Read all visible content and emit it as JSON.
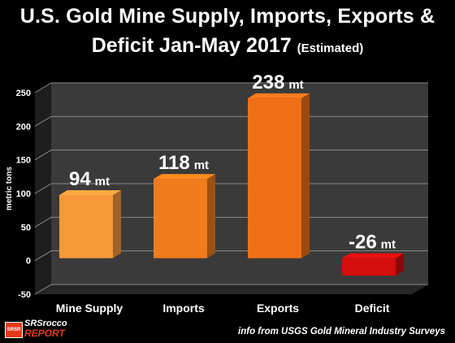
{
  "title": {
    "line1": "U.S. Gold Mine Supply, Imports, Exports &",
    "line2": "Deficit Jan-May 2017",
    "subtitle": "(Estimated)"
  },
  "footer": {
    "source": "info from USGS Gold Mineral Industry Surveys",
    "logo_top": "SRSrocco",
    "logo_bottom": "REPORT",
    "logo_mark": "SRSR"
  },
  "colors": {
    "background": "#000000",
    "wall": "#3a3a3a",
    "floor": "#262626",
    "grid": "#8a8a8a",
    "text": "#ffffff"
  },
  "chart_data": {
    "type": "bar",
    "categories": [
      "Mine Supply",
      "Imports",
      "Exports",
      "Deficit"
    ],
    "values": [
      94,
      118,
      238,
      -26
    ],
    "data_labels": [
      "94",
      "118",
      "238",
      "-26"
    ],
    "unit": "mt",
    "bar_colors": [
      "#f7983a",
      "#f07c1c",
      "#f07018",
      "#d40d0d"
    ],
    "ylabel": "metric tons",
    "ylim": [
      -50,
      250
    ],
    "yticks": [
      -50,
      0,
      50,
      100,
      150,
      200,
      250
    ],
    "grid": true,
    "legend": "none",
    "style": "3d"
  }
}
